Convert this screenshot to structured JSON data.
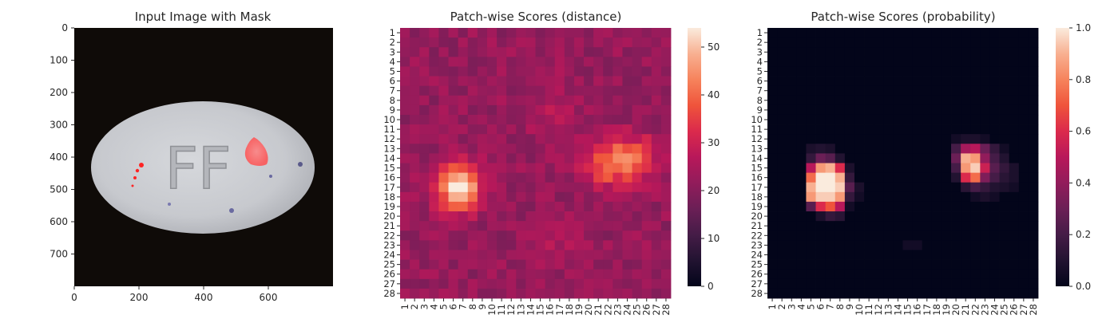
{
  "chart_data": [
    {
      "type": "image",
      "title": "Input Image with Mask",
      "xticks": [
        0,
        200,
        400,
        600
      ],
      "yticks": [
        0,
        100,
        200,
        300,
        400,
        500,
        600,
        700
      ],
      "xlim": [
        0,
        800
      ],
      "ylim": [
        800,
        0
      ],
      "content": "photo of a pill marked FF on dark background with red mask overlay",
      "pill_marking": "FF"
    },
    {
      "type": "heatmap",
      "title": "Patch-wise Scores (distance)",
      "rows": [
        "1",
        "2",
        "3",
        "4",
        "5",
        "6",
        "7",
        "8",
        "9",
        "10",
        "11",
        "12",
        "13",
        "14",
        "15",
        "16",
        "17",
        "18",
        "19",
        "20",
        "21",
        "22",
        "23",
        "24",
        "25",
        "26",
        "27",
        "28"
      ],
      "cols": [
        "1",
        "2",
        "3",
        "4",
        "5",
        "6",
        "7",
        "8",
        "9",
        "10",
        "11",
        "12",
        "13",
        "14",
        "15",
        "16",
        "17",
        "18",
        "19",
        "20",
        "21",
        "22",
        "23",
        "24",
        "25",
        "26",
        "27",
        "28"
      ],
      "colorbar": {
        "ticks": [
          0,
          10,
          20,
          30,
          40,
          50
        ],
        "vmin": 0,
        "vmax": 54
      },
      "background_value": 22,
      "hotspots": [
        {
          "row": 17,
          "col": 6.5,
          "peak": 54,
          "sigma": 1.6
        },
        {
          "row": 14.5,
          "col": 22,
          "peak": 40,
          "sigma": 1.7
        },
        {
          "row": 14,
          "col": 25,
          "peak": 36,
          "sigma": 1.6
        },
        {
          "row": 9,
          "col": 16,
          "peak": 26,
          "sigma": 2.0
        },
        {
          "row": 23,
          "col": 16,
          "peak": 26,
          "sigma": 1.8
        }
      ]
    },
    {
      "type": "heatmap",
      "title": "Patch-wise Scores (probability)",
      "rows": [
        "1",
        "2",
        "3",
        "4",
        "5",
        "6",
        "7",
        "8",
        "9",
        "10",
        "11",
        "12",
        "13",
        "14",
        "15",
        "16",
        "17",
        "18",
        "19",
        "20",
        "21",
        "22",
        "23",
        "24",
        "25",
        "26",
        "27",
        "28"
      ],
      "cols": [
        "1",
        "2",
        "3",
        "4",
        "5",
        "6",
        "7",
        "8",
        "9",
        "10",
        "11",
        "12",
        "13",
        "14",
        "15",
        "16",
        "17",
        "18",
        "19",
        "20",
        "21",
        "22",
        "23",
        "24",
        "25",
        "26",
        "27",
        "28"
      ],
      "colorbar": {
        "ticks": [
          0.0,
          0.2,
          0.4,
          0.6,
          0.8,
          1.0
        ],
        "vmin": 0,
        "vmax": 1
      },
      "values_sparse": [
        {
          "r": 13,
          "c": 5,
          "v": 0.08
        },
        {
          "r": 13,
          "c": 6,
          "v": 0.1
        },
        {
          "r": 13,
          "c": 7,
          "v": 0.08
        },
        {
          "r": 14,
          "c": 5,
          "v": 0.15
        },
        {
          "r": 14,
          "c": 6,
          "v": 0.3
        },
        {
          "r": 14,
          "c": 7,
          "v": 0.25
        },
        {
          "r": 14,
          "c": 8,
          "v": 0.1
        },
        {
          "r": 15,
          "c": 5,
          "v": 0.5
        },
        {
          "r": 15,
          "c": 6,
          "v": 0.85
        },
        {
          "r": 15,
          "c": 7,
          "v": 0.9
        },
        {
          "r": 15,
          "c": 8,
          "v": 0.6
        },
        {
          "r": 15,
          "c": 9,
          "v": 0.08
        },
        {
          "r": 16,
          "c": 5,
          "v": 0.75
        },
        {
          "r": 16,
          "c": 6,
          "v": 1.0
        },
        {
          "r": 16,
          "c": 7,
          "v": 1.0
        },
        {
          "r": 16,
          "c": 8,
          "v": 0.9
        },
        {
          "r": 16,
          "c": 9,
          "v": 0.15
        },
        {
          "r": 17,
          "c": 5,
          "v": 0.9
        },
        {
          "r": 17,
          "c": 6,
          "v": 1.0
        },
        {
          "r": 17,
          "c": 7,
          "v": 1.0
        },
        {
          "r": 17,
          "c": 8,
          "v": 0.95
        },
        {
          "r": 17,
          "c": 9,
          "v": 0.25
        },
        {
          "r": 17,
          "c": 10,
          "v": 0.08
        },
        {
          "r": 18,
          "c": 5,
          "v": 0.85
        },
        {
          "r": 18,
          "c": 6,
          "v": 0.95
        },
        {
          "r": 18,
          "c": 7,
          "v": 0.95
        },
        {
          "r": 18,
          "c": 8,
          "v": 0.85
        },
        {
          "r": 18,
          "c": 9,
          "v": 0.15
        },
        {
          "r": 18,
          "c": 10,
          "v": 0.05
        },
        {
          "r": 19,
          "c": 5,
          "v": 0.25
        },
        {
          "r": 19,
          "c": 6,
          "v": 0.6
        },
        {
          "r": 19,
          "c": 7,
          "v": 0.7
        },
        {
          "r": 19,
          "c": 8,
          "v": 0.5
        },
        {
          "r": 19,
          "c": 9,
          "v": 0.05
        },
        {
          "r": 20,
          "c": 6,
          "v": 0.08
        },
        {
          "r": 20,
          "c": 7,
          "v": 0.15
        },
        {
          "r": 20,
          "c": 8,
          "v": 0.12
        },
        {
          "r": 12,
          "c": 20,
          "v": 0.05
        },
        {
          "r": 12,
          "c": 21,
          "v": 0.08
        },
        {
          "r": 12,
          "c": 22,
          "v": 0.08
        },
        {
          "r": 12,
          "c": 23,
          "v": 0.05
        },
        {
          "r": 13,
          "c": 20,
          "v": 0.2
        },
        {
          "r": 13,
          "c": 21,
          "v": 0.45
        },
        {
          "r": 13,
          "c": 22,
          "v": 0.5
        },
        {
          "r": 13,
          "c": 23,
          "v": 0.3
        },
        {
          "r": 13,
          "c": 24,
          "v": 0.15
        },
        {
          "r": 13,
          "c": 25,
          "v": 0.05
        },
        {
          "r": 14,
          "c": 20,
          "v": 0.3
        },
        {
          "r": 14,
          "c": 21,
          "v": 0.9
        },
        {
          "r": 14,
          "c": 22,
          "v": 0.85
        },
        {
          "r": 14,
          "c": 23,
          "v": 0.4
        },
        {
          "r": 14,
          "c": 24,
          "v": 0.2
        },
        {
          "r": 14,
          "c": 25,
          "v": 0.1
        },
        {
          "r": 15,
          "c": 20,
          "v": 0.2
        },
        {
          "r": 15,
          "c": 21,
          "v": 0.85
        },
        {
          "r": 15,
          "c": 22,
          "v": 0.95
        },
        {
          "r": 15,
          "c": 23,
          "v": 0.55
        },
        {
          "r": 15,
          "c": 24,
          "v": 0.25
        },
        {
          "r": 15,
          "c": 25,
          "v": 0.15
        },
        {
          "r": 15,
          "c": 26,
          "v": 0.08
        },
        {
          "r": 16,
          "c": 20,
          "v": 0.1
        },
        {
          "r": 16,
          "c": 21,
          "v": 0.6
        },
        {
          "r": 16,
          "c": 22,
          "v": 0.75
        },
        {
          "r": 16,
          "c": 23,
          "v": 0.35
        },
        {
          "r": 16,
          "c": 24,
          "v": 0.2
        },
        {
          "r": 16,
          "c": 25,
          "v": 0.12
        },
        {
          "r": 16,
          "c": 26,
          "v": 0.08
        },
        {
          "r": 17,
          "c": 21,
          "v": 0.12
        },
        {
          "r": 17,
          "c": 22,
          "v": 0.2
        },
        {
          "r": 17,
          "c": 23,
          "v": 0.15
        },
        {
          "r": 17,
          "c": 24,
          "v": 0.1
        },
        {
          "r": 17,
          "c": 25,
          "v": 0.08
        },
        {
          "r": 17,
          "c": 26,
          "v": 0.05
        },
        {
          "r": 18,
          "c": 22,
          "v": 0.05
        },
        {
          "r": 18,
          "c": 23,
          "v": 0.08
        },
        {
          "r": 18,
          "c": 24,
          "v": 0.05
        },
        {
          "r": 23,
          "c": 15,
          "v": 0.05
        },
        {
          "r": 23,
          "c": 16,
          "v": 0.05
        }
      ]
    }
  ]
}
